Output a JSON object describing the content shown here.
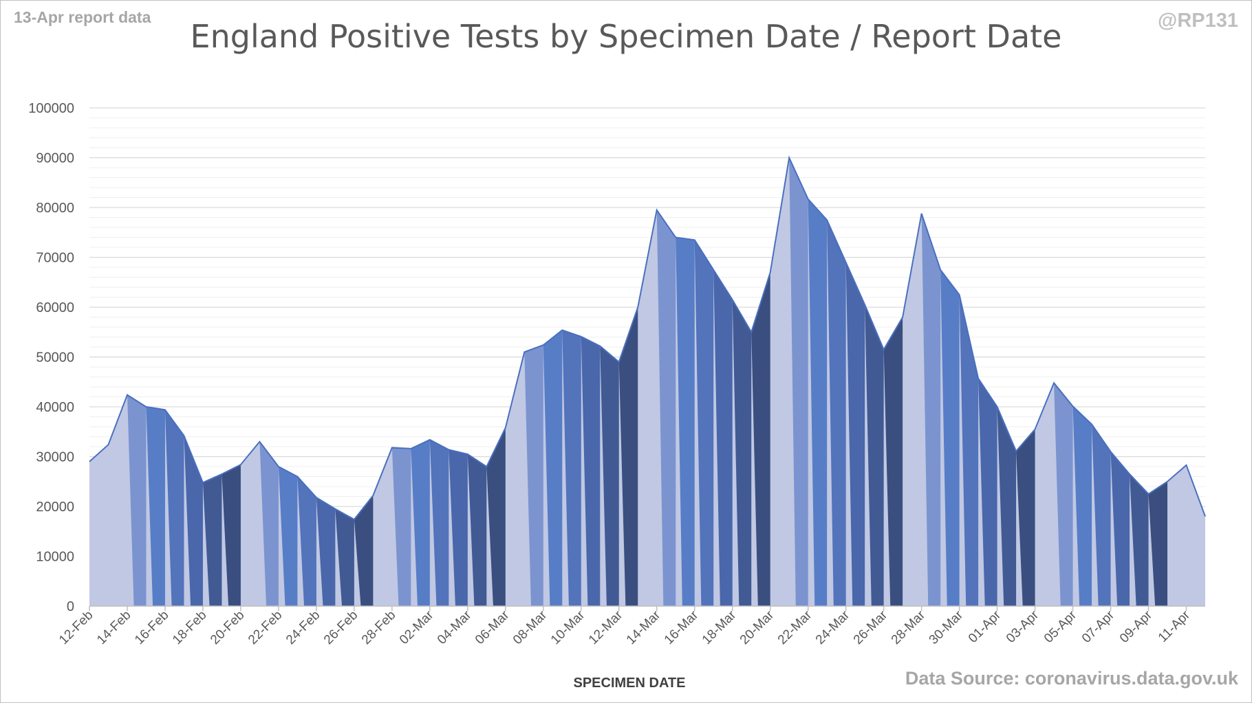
{
  "header": {
    "report_note": "13-Apr report data",
    "handle": "@RP131",
    "source": "Data Source: coronavirus.data.gov.uk"
  },
  "chart_data": {
    "type": "area",
    "title": "England Positive Tests by Specimen Date / Report Date",
    "xlabel": "SPECIMEN DATE",
    "ylabel": "",
    "ylim": [
      0,
      100000
    ],
    "y_ticks": [
      0,
      10000,
      20000,
      30000,
      40000,
      50000,
      60000,
      70000,
      80000,
      90000,
      100000
    ],
    "grid": true,
    "legend": "none",
    "x_tick_labels": [
      "12-Feb",
      "14-Feb",
      "16-Feb",
      "18-Feb",
      "20-Feb",
      "22-Feb",
      "24-Feb",
      "26-Feb",
      "28-Feb",
      "02-Mar",
      "04-Mar",
      "06-Mar",
      "08-Mar",
      "10-Mar",
      "12-Mar",
      "14-Mar",
      "16-Mar",
      "18-Mar",
      "20-Mar",
      "22-Mar",
      "24-Mar",
      "26-Mar",
      "28-Mar",
      "30-Mar",
      "01-Apr",
      "03-Apr",
      "05-Apr",
      "07-Apr",
      "09-Apr",
      "11-Apr"
    ],
    "dates": [
      "12-Feb",
      "13-Feb",
      "14-Feb",
      "15-Feb",
      "16-Feb",
      "17-Feb",
      "18-Feb",
      "19-Feb",
      "20-Feb",
      "21-Feb",
      "22-Feb",
      "23-Feb",
      "24-Feb",
      "25-Feb",
      "26-Feb",
      "27-Feb",
      "28-Feb",
      "01-Mar",
      "02-Mar",
      "03-Mar",
      "04-Mar",
      "05-Mar",
      "06-Mar",
      "07-Mar",
      "08-Mar",
      "09-Mar",
      "10-Mar",
      "11-Mar",
      "12-Mar",
      "13-Mar",
      "14-Mar",
      "15-Mar",
      "16-Mar",
      "17-Mar",
      "18-Mar",
      "19-Mar",
      "20-Mar",
      "21-Mar",
      "22-Mar",
      "23-Mar",
      "24-Mar",
      "25-Mar",
      "26-Mar",
      "27-Mar",
      "28-Mar",
      "29-Mar",
      "30-Mar",
      "31-Mar",
      "01-Apr",
      "02-Apr",
      "03-Apr",
      "04-Apr",
      "05-Apr",
      "06-Apr",
      "07-Apr",
      "08-Apr",
      "09-Apr",
      "10-Apr",
      "11-Apr",
      "12-Apr"
    ],
    "total_positive_tests": [
      29000,
      32400,
      42400,
      40000,
      39400,
      34200,
      24800,
      26500,
      28400,
      33000,
      28000,
      26000,
      21800,
      19500,
      17400,
      22200,
      31800,
      31600,
      33400,
      31400,
      30500,
      28000,
      35800,
      51000,
      52400,
      55400,
      54100,
      52200,
      49000,
      60000,
      79500,
      74000,
      73500,
      67500,
      61500,
      55000,
      67000,
      90000,
      81700,
      77500,
      69000,
      60500,
      51500,
      58000,
      78800,
      67500,
      62500,
      45700,
      40000,
      31100,
      35500,
      44800,
      40100,
      36500,
      31000,
      26500,
      22500,
      25000,
      28300,
      18000
    ],
    "color_shades": [
      "#c0c8e3",
      "#9eadd8",
      "#6f8bcd",
      "#4470c1",
      "#3f64b4",
      "#3456a0",
      "#2a4786",
      "#223a6d"
    ]
  }
}
